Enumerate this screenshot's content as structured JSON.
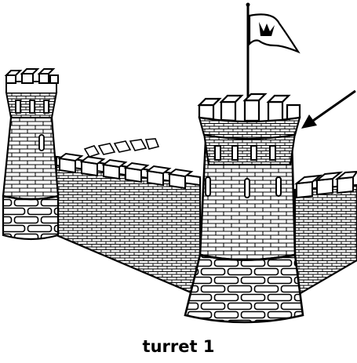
{
  "caption": "turret 1",
  "colors": {
    "ink": "#000000",
    "paper": "#ffffff"
  },
  "illustration": {
    "subject": "castle-line-drawing",
    "pointer": "arrow-icon"
  }
}
